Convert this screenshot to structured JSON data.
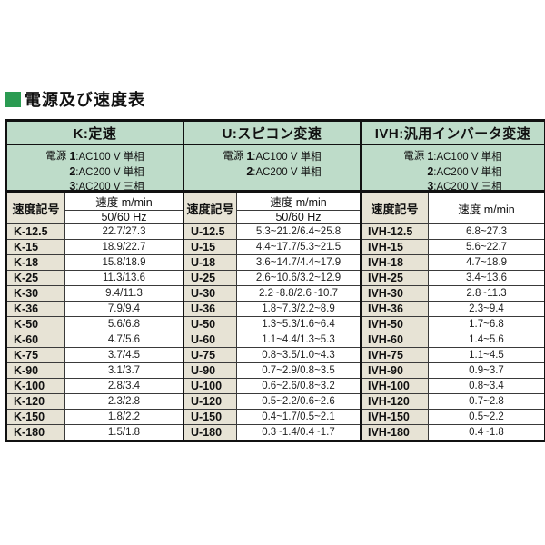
{
  "title": "電源及び速度表",
  "colors": {
    "header_green": "#bedcc9",
    "symbol_beige": "#e7e3d5",
    "title_square_green": "#2b9b52",
    "border_black": "#111111"
  },
  "columns": {
    "symbol_header": "速度記号",
    "speed_header": "速度 m/min",
    "speed_subheader": "50/60 Hz"
  },
  "groups": [
    {
      "name": "K",
      "header": "K:定速",
      "power_label": "電源",
      "power_lines": [
        {
          "no": "1",
          "desc": ":AC100 V 単相"
        },
        {
          "no": "2",
          "desc": ":AC200 V 単相"
        },
        {
          "no": "3",
          "desc": ":AC200 V 三相"
        }
      ],
      "rows": [
        {
          "symbol": "K-12.5",
          "speed": "22.7/27.3"
        },
        {
          "symbol": "K-15",
          "speed": "18.9/22.7"
        },
        {
          "symbol": "K-18",
          "speed": "15.8/18.9"
        },
        {
          "symbol": "K-25",
          "speed": "11.3/13.6"
        },
        {
          "symbol": "K-30",
          "speed": "9.4/11.3"
        },
        {
          "symbol": "K-36",
          "speed": "7.9/9.4"
        },
        {
          "symbol": "K-50",
          "speed": "5.6/6.8"
        },
        {
          "symbol": "K-60",
          "speed": "4.7/5.6"
        },
        {
          "symbol": "K-75",
          "speed": "3.7/4.5"
        },
        {
          "symbol": "K-90",
          "speed": "3.1/3.7"
        },
        {
          "symbol": "K-100",
          "speed": "2.8/3.4"
        },
        {
          "symbol": "K-120",
          "speed": "2.3/2.8"
        },
        {
          "symbol": "K-150",
          "speed": "1.8/2.2"
        },
        {
          "symbol": "K-180",
          "speed": "1.5/1.8"
        }
      ]
    },
    {
      "name": "U",
      "header": "U:スピコン変速",
      "power_label": "電源",
      "power_lines": [
        {
          "no": "1",
          "desc": ":AC100 V 単相"
        },
        {
          "no": "2",
          "desc": ":AC200 V 単相"
        }
      ],
      "rows": [
        {
          "symbol": "U-12.5",
          "speed": "5.3~21.2/6.4~25.8"
        },
        {
          "symbol": "U-15",
          "speed": "4.4~17.7/5.3~21.5"
        },
        {
          "symbol": "U-18",
          "speed": "3.6~14.7/4.4~17.9"
        },
        {
          "symbol": "U-25",
          "speed": "2.6~10.6/3.2~12.9"
        },
        {
          "symbol": "U-30",
          "speed": "2.2~8.8/2.6~10.7"
        },
        {
          "symbol": "U-36",
          "speed": "1.8~7.3/2.2~8.9"
        },
        {
          "symbol": "U-50",
          "speed": "1.3~5.3/1.6~6.4"
        },
        {
          "symbol": "U-60",
          "speed": "1.1~4.4/1.3~5.3"
        },
        {
          "symbol": "U-75",
          "speed": "0.8~3.5/1.0~4.3"
        },
        {
          "symbol": "U-90",
          "speed": "0.7~2.9/0.8~3.5"
        },
        {
          "symbol": "U-100",
          "speed": "0.6~2.6/0.8~3.2"
        },
        {
          "symbol": "U-120",
          "speed": "0.5~2.2/0.6~2.6"
        },
        {
          "symbol": "U-150",
          "speed": "0.4~1.7/0.5~2.1"
        },
        {
          "symbol": "U-180",
          "speed": "0.3~1.4/0.4~1.7"
        }
      ]
    },
    {
      "name": "IVH",
      "header": "IVH:汎用インバータ変速",
      "power_label": "電源",
      "power_lines": [
        {
          "no": "1",
          "desc": ":AC100 V 単相"
        },
        {
          "no": "2",
          "desc": ":AC200 V 単相"
        },
        {
          "no": "3",
          "desc": ":AC200 V 三相"
        }
      ],
      "rows": [
        {
          "symbol": "IVH-12.5",
          "speed": "6.8~27.3"
        },
        {
          "symbol": "IVH-15",
          "speed": "5.6~22.7"
        },
        {
          "symbol": "IVH-18",
          "speed": "4.7~18.9"
        },
        {
          "symbol": "IVH-25",
          "speed": "3.4~13.6"
        },
        {
          "symbol": "IVH-30",
          "speed": "2.8~11.3"
        },
        {
          "symbol": "IVH-36",
          "speed": "2.3~9.4"
        },
        {
          "symbol": "IVH-50",
          "speed": "1.7~6.8"
        },
        {
          "symbol": "IVH-60",
          "speed": "1.4~5.6"
        },
        {
          "symbol": "IVH-75",
          "speed": "1.1~4.5"
        },
        {
          "symbol": "IVH-90",
          "speed": "0.9~3.7"
        },
        {
          "symbol": "IVH-100",
          "speed": "0.8~3.4"
        },
        {
          "symbol": "IVH-120",
          "speed": "0.7~2.8"
        },
        {
          "symbol": "IVH-150",
          "speed": "0.5~2.2"
        },
        {
          "symbol": "IVH-180",
          "speed": "0.4~1.8"
        }
      ]
    }
  ]
}
